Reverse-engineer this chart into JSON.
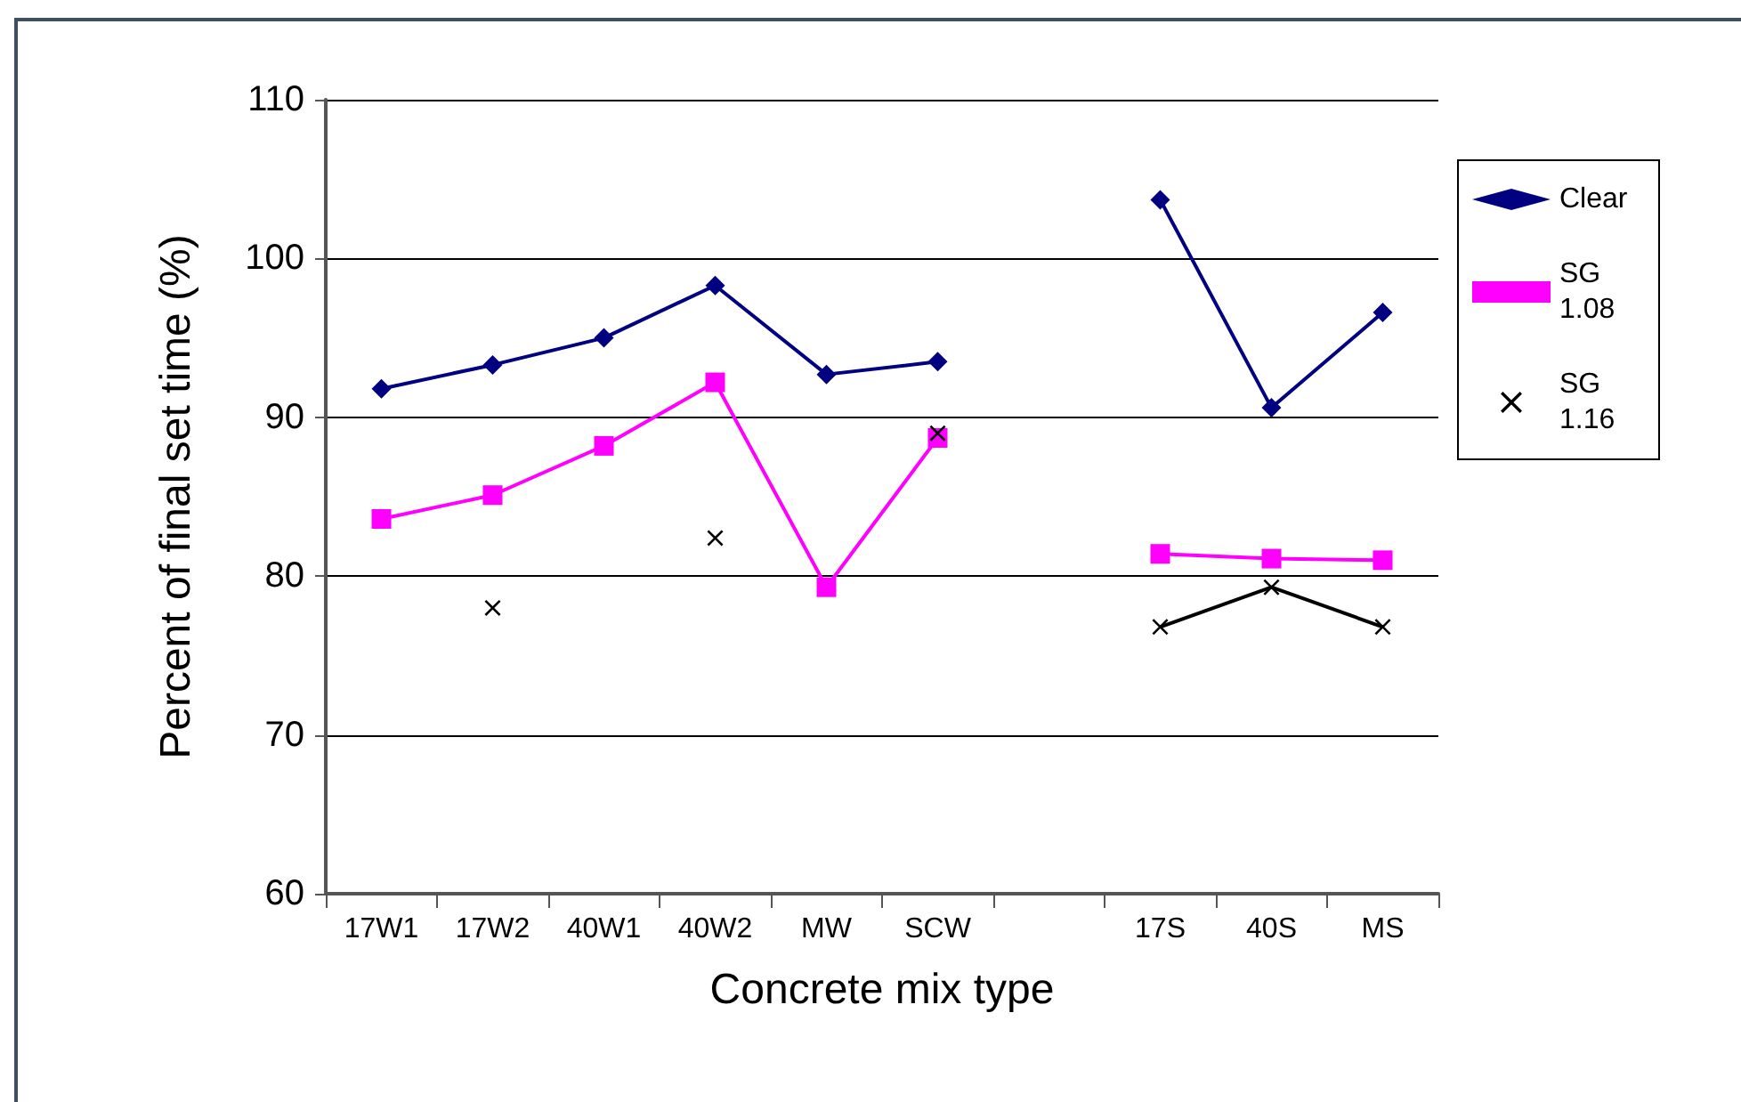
{
  "chart_data": {
    "type": "line",
    "xlabel": "Concrete mix type",
    "ylabel": "Percent of final set time (%)",
    "categories": [
      "17W1",
      "17W2",
      "40W1",
      "40W2",
      "MW",
      "SCW",
      null,
      "17S",
      "40S",
      "MS"
    ],
    "series": [
      {
        "name": "Clear",
        "color": "#000080",
        "marker": "diamond",
        "values": [
          91.8,
          93.3,
          95.0,
          98.3,
          92.7,
          93.5,
          null,
          103.7,
          90.6,
          96.6
        ]
      },
      {
        "name": "SG 1.08",
        "color": "#ff00ff",
        "marker": "square",
        "values": [
          83.6,
          85.1,
          88.2,
          92.2,
          79.3,
          88.7,
          null,
          81.4,
          81.1,
          81.0
        ]
      },
      {
        "name": "SG 1.16",
        "color": "#000000",
        "marker": "cross",
        "values": [
          null,
          78.0,
          null,
          82.4,
          null,
          89.0,
          null,
          76.8,
          79.3,
          76.8
        ]
      }
    ],
    "ylim": [
      60,
      110
    ],
    "yticks": [
      60,
      70,
      80,
      90,
      100,
      110
    ],
    "grid": "y",
    "legend": "right"
  }
}
